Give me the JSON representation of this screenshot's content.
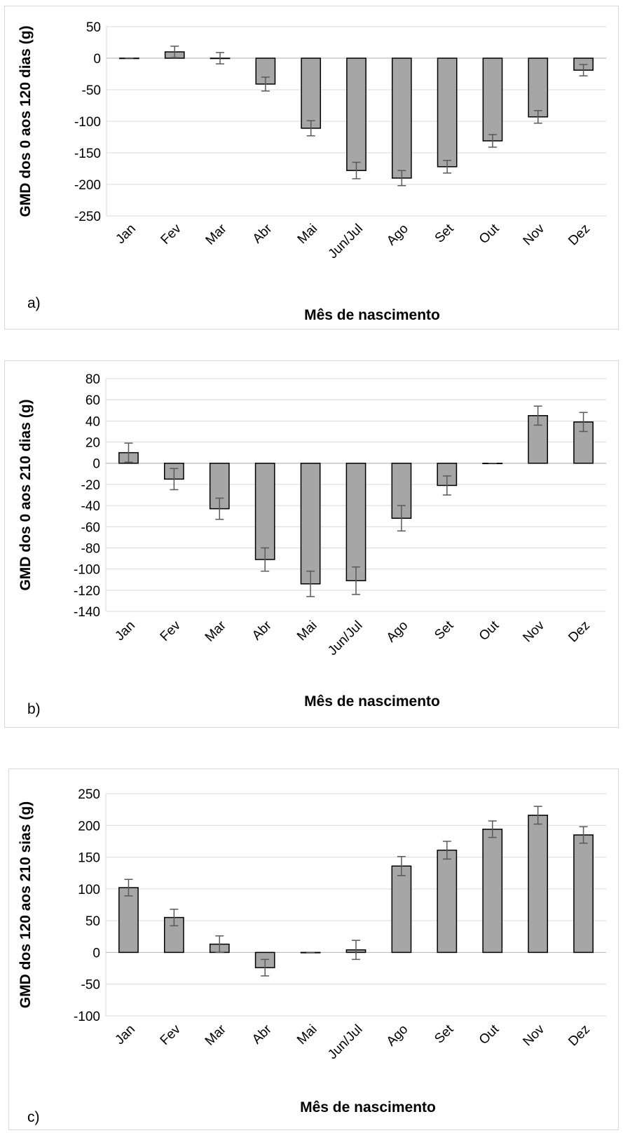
{
  "chart_data": [
    {
      "type": "bar",
      "panel_label": "a)",
      "categories": [
        "Jan",
        "Fev",
        "Mar",
        "Abr",
        "Mai",
        "Jun/Jul",
        "Ago",
        "Set",
        "Out",
        "Nov",
        "Dez"
      ],
      "values": [
        0,
        10,
        0,
        -41,
        -111,
        -178,
        -190,
        -172,
        -131,
        -93,
        -19
      ],
      "errors": [
        0,
        9,
        9,
        11,
        12,
        13,
        12,
        10,
        10,
        10,
        9
      ],
      "xlabel": "Mês de nascimento",
      "ylabel": "GMD dos 0 aos 120 dias (g)",
      "ylim": [
        -250,
        50
      ],
      "yticks": [
        50,
        0,
        -50,
        -100,
        -150,
        -200,
        -250
      ],
      "grid": true,
      "bar_color": "#a6a6a6"
    },
    {
      "type": "bar",
      "panel_label": "b)",
      "categories": [
        "Jan",
        "Fev",
        "Mar",
        "Abr",
        "Mai",
        "Jun/Jul",
        "Ago",
        "Set",
        "Out",
        "Nov",
        "Dez"
      ],
      "values": [
        10,
        -15,
        -43,
        -91,
        -114,
        -111,
        -52,
        -21,
        0,
        45,
        39
      ],
      "errors": [
        9,
        10,
        10,
        11,
        12,
        13,
        12,
        9,
        0,
        9,
        9
      ],
      "xlabel": "Mês de nascimento",
      "ylabel": "GMD dos 0 aos 210 dias (g)",
      "ylim": [
        -140,
        80
      ],
      "yticks": [
        80,
        60,
        40,
        20,
        0,
        -20,
        -40,
        -60,
        -80,
        -100,
        -120,
        -140
      ],
      "grid": true,
      "bar_color": "#a6a6a6"
    },
    {
      "type": "bar",
      "panel_label": "c)",
      "categories": [
        "Jan",
        "Fev",
        "Mar",
        "Abr",
        "Mai",
        "Jun/Jul",
        "Ago",
        "Set",
        "Out",
        "Nov",
        "Dez"
      ],
      "values": [
        102,
        55,
        13,
        -24,
        0,
        4,
        136,
        161,
        194,
        216,
        185
      ],
      "errors": [
        13,
        13,
        13,
        13,
        0,
        15,
        15,
        14,
        13,
        14,
        13
      ],
      "xlabel": "Mês de nascimento",
      "ylabel": "GMD dos 120 aos 210 sias (g)",
      "ylim": [
        -100,
        250
      ],
      "yticks": [
        250,
        200,
        150,
        100,
        50,
        0,
        -50,
        -100
      ],
      "grid": true,
      "bar_color": "#a6a6a6"
    }
  ]
}
